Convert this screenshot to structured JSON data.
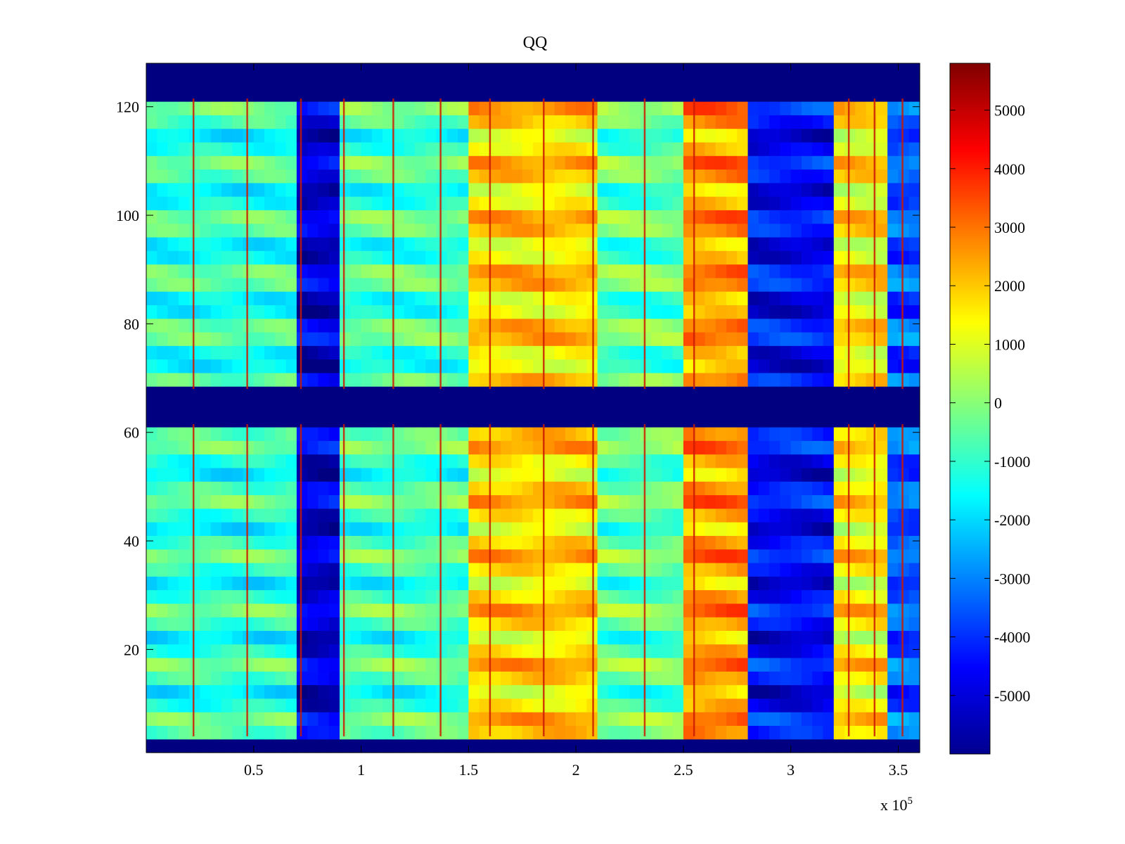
{
  "chart_data": {
    "type": "heatmap",
    "title": "QQ",
    "xlabel": "",
    "ylabel": "",
    "x_exponent_label": "x 10",
    "x_exponent_power": "5",
    "xlim": [
      0,
      3.6
    ],
    "ylim": [
      1,
      128
    ],
    "x_ticks": [
      0.5,
      1,
      1.5,
      2,
      2.5,
      3,
      3.5
    ],
    "x_tick_labels": [
      "0.5",
      "1",
      "1.5",
      "2",
      "2.5",
      "3",
      "3.5"
    ],
    "y_ticks": [
      20,
      40,
      60,
      80,
      100,
      120
    ],
    "y_tick_labels": [
      "20",
      "40",
      "60",
      "80",
      "100",
      "120"
    ],
    "colormap": "jet",
    "clim": [
      -6000,
      5800
    ],
    "colorbar_ticks": [
      5000,
      4000,
      3000,
      2000,
      1000,
      0,
      -1000,
      -2000,
      -3000,
      -4000,
      -5000
    ],
    "colorbar_tick_labels": [
      "5000",
      "4000",
      "3000",
      "2000",
      "1000",
      "0",
      "-1000",
      "-2000",
      "-3000",
      "-4000",
      "-5000"
    ],
    "blank_row_bands": [
      [
        1,
        4
      ],
      [
        61.5,
        68
      ],
      [
        121.5,
        128
      ]
    ],
    "column_regions": [
      {
        "x": [
          0.0,
          0.7
        ],
        "value": -1000
      },
      {
        "x": [
          0.7,
          0.9
        ],
        "value": -5000
      },
      {
        "x": [
          0.9,
          1.5
        ],
        "value": -800
      },
      {
        "x": [
          1.5,
          2.1
        ],
        "value": 1800
      },
      {
        "x": [
          2.1,
          2.5
        ],
        "value": -500
      },
      {
        "x": [
          2.5,
          2.8
        ],
        "value": 2500
      },
      {
        "x": [
          2.8,
          3.2
        ],
        "value": -4500
      },
      {
        "x": [
          3.2,
          3.45
        ],
        "value": 1500
      },
      {
        "x": [
          3.45,
          3.6
        ],
        "value": -3500
      }
    ],
    "vertical_line_positions": [
      0.22,
      0.47,
      0.72,
      0.92,
      1.15,
      1.37,
      1.6,
      1.85,
      2.08,
      2.32,
      2.55,
      3.27,
      3.39,
      3.52
    ]
  }
}
